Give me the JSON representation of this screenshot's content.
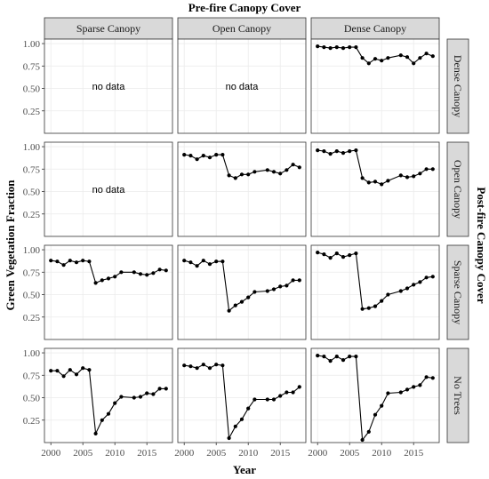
{
  "chart_data": {
    "type": "line",
    "title": "Pre-fire Canopy Cover",
    "row_title": "Post-fire Canopy Cover",
    "xlabel": "Year",
    "ylabel": "Green Vegetation Fraction",
    "xlim": [
      1999,
      2019
    ],
    "ylim": [
      0.0,
      1.05
    ],
    "x_ticks": [
      2000,
      2005,
      2010,
      2015
    ],
    "y_ticks": [
      0.25,
      0.5,
      0.75,
      1.0
    ],
    "y_tick_labels": [
      "0.25",
      "0.50",
      "0.75",
      "1.00"
    ],
    "grid": true,
    "no_data_label": "no data",
    "columns": [
      "Sparse Canopy",
      "Open Canopy",
      "Dense Canopy"
    ],
    "rows": [
      "Dense Canopy",
      "Open Canopy",
      "Sparse Canopy",
      "No Trees"
    ],
    "x": [
      2000,
      2001,
      2002,
      2003,
      2004,
      2005,
      2006,
      2007,
      2008,
      2009,
      2010,
      2011,
      2013,
      2014,
      2015,
      2016,
      2017,
      2018
    ],
    "panels": [
      [
        null,
        null,
        [
          0.97,
          0.96,
          0.95,
          0.96,
          0.95,
          0.96,
          0.96,
          0.84,
          0.78,
          0.83,
          0.81,
          0.84,
          0.87,
          0.85,
          0.78,
          0.84,
          0.89,
          0.86
        ]
      ],
      [
        null,
        [
          0.91,
          0.9,
          0.86,
          0.9,
          0.88,
          0.91,
          0.91,
          0.68,
          0.65,
          0.69,
          0.69,
          0.72,
          0.74,
          0.72,
          0.7,
          0.74,
          0.8,
          0.77
        ],
        [
          0.96,
          0.95,
          0.92,
          0.95,
          0.93,
          0.95,
          0.96,
          0.65,
          0.6,
          0.61,
          0.58,
          0.62,
          0.68,
          0.66,
          0.67,
          0.7,
          0.75,
          0.75
        ]
      ],
      [
        [
          0.88,
          0.87,
          0.83,
          0.88,
          0.86,
          0.88,
          0.87,
          0.63,
          0.66,
          0.68,
          0.7,
          0.75,
          0.75,
          0.73,
          0.72,
          0.74,
          0.78,
          0.77
        ],
        [
          0.88,
          0.86,
          0.82,
          0.88,
          0.84,
          0.87,
          0.87,
          0.32,
          0.38,
          0.42,
          0.47,
          0.53,
          0.54,
          0.56,
          0.59,
          0.6,
          0.66,
          0.66
        ],
        [
          0.97,
          0.95,
          0.91,
          0.96,
          0.92,
          0.94,
          0.96,
          0.34,
          0.35,
          0.37,
          0.43,
          0.5,
          0.54,
          0.57,
          0.61,
          0.64,
          0.69,
          0.7
        ]
      ],
      [
        [
          0.8,
          0.8,
          0.74,
          0.81,
          0.76,
          0.83,
          0.81,
          0.1,
          0.25,
          0.32,
          0.44,
          0.51,
          0.5,
          0.51,
          0.55,
          0.54,
          0.6,
          0.6
        ],
        [
          0.86,
          0.85,
          0.83,
          0.87,
          0.83,
          0.87,
          0.86,
          0.05,
          0.18,
          0.26,
          0.38,
          0.48,
          0.48,
          0.48,
          0.52,
          0.56,
          0.56,
          0.62
        ],
        [
          0.97,
          0.96,
          0.91,
          0.96,
          0.92,
          0.96,
          0.96,
          0.03,
          0.12,
          0.31,
          0.41,
          0.55,
          0.56,
          0.59,
          0.62,
          0.64,
          0.73,
          0.72
        ]
      ]
    ]
  }
}
